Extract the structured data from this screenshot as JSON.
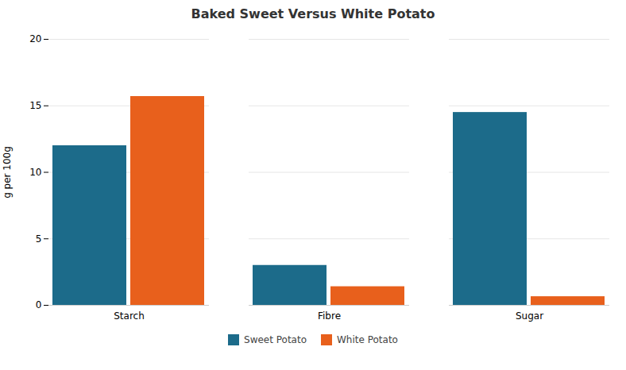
{
  "chart_data": {
    "type": "bar",
    "title": "Baked Sweet Versus White Potato",
    "categories": [
      "Starch",
      "Fibre",
      "Sugar"
    ],
    "series": [
      {
        "name": "Sweet Potato",
        "color": "#1c6b8a",
        "values": [
          12.0,
          3.0,
          14.5
        ]
      },
      {
        "name": "White Potato",
        "color": "#e8601c",
        "values": [
          15.7,
          1.4,
          0.65
        ]
      }
    ],
    "ylabel": "g per 100g",
    "ylim": [
      0,
      20
    ],
    "yticks": [
      0,
      5,
      10,
      15,
      20
    ],
    "grid": true,
    "legend": "bottom"
  }
}
